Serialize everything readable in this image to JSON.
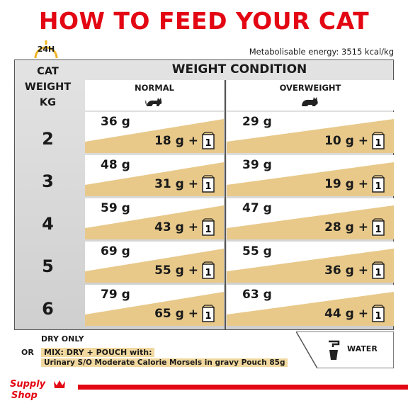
{
  "title": "HOW TO FEED YOUR CAT",
  "clock_label": "24H",
  "energy": "Metabolisable energy: 3515 kcal/kg",
  "kg_header": [
    "CAT",
    "WEIGHT",
    "KG"
  ],
  "condition_header": "WEIGHT CONDITION",
  "columns": [
    "NORMAL",
    "OVERWEIGHT"
  ],
  "rows": [
    {
      "kg": "2",
      "normal_dry": "36 g",
      "normal_mix": "18 g  +",
      "over_dry": "29 g",
      "over_mix": "10 g  +"
    },
    {
      "kg": "3",
      "normal_dry": "48 g",
      "normal_mix": "31 g  +",
      "over_dry": "39 g",
      "over_mix": "19 g  +"
    },
    {
      "kg": "4",
      "normal_dry": "59 g",
      "normal_mix": "43 g  +",
      "over_dry": "47 g",
      "over_mix": "28 g  +"
    },
    {
      "kg": "5",
      "normal_dry": "69 g",
      "normal_mix": "55 g  +",
      "over_dry": "55 g",
      "over_mix": "36 g  +"
    },
    {
      "kg": "6",
      "normal_dry": "79 g",
      "normal_mix": "65 g  +",
      "over_dry": "63 g",
      "over_mix": "44 g  +"
    }
  ],
  "pouch_count": "1",
  "legend": {
    "dry_only": "DRY ONLY",
    "or": "OR",
    "mix": "MIX: DRY + POUCH with:",
    "pouch": "Urinary S/O Moderate Calorie Morsels in gravy Pouch 85g",
    "water": "WATER"
  },
  "logo": {
    "line1": "Supply",
    "line2": "Shop"
  },
  "colors": {
    "red": "#e30613",
    "tan": "#e8c98a",
    "gray": "#d9d9d9"
  }
}
